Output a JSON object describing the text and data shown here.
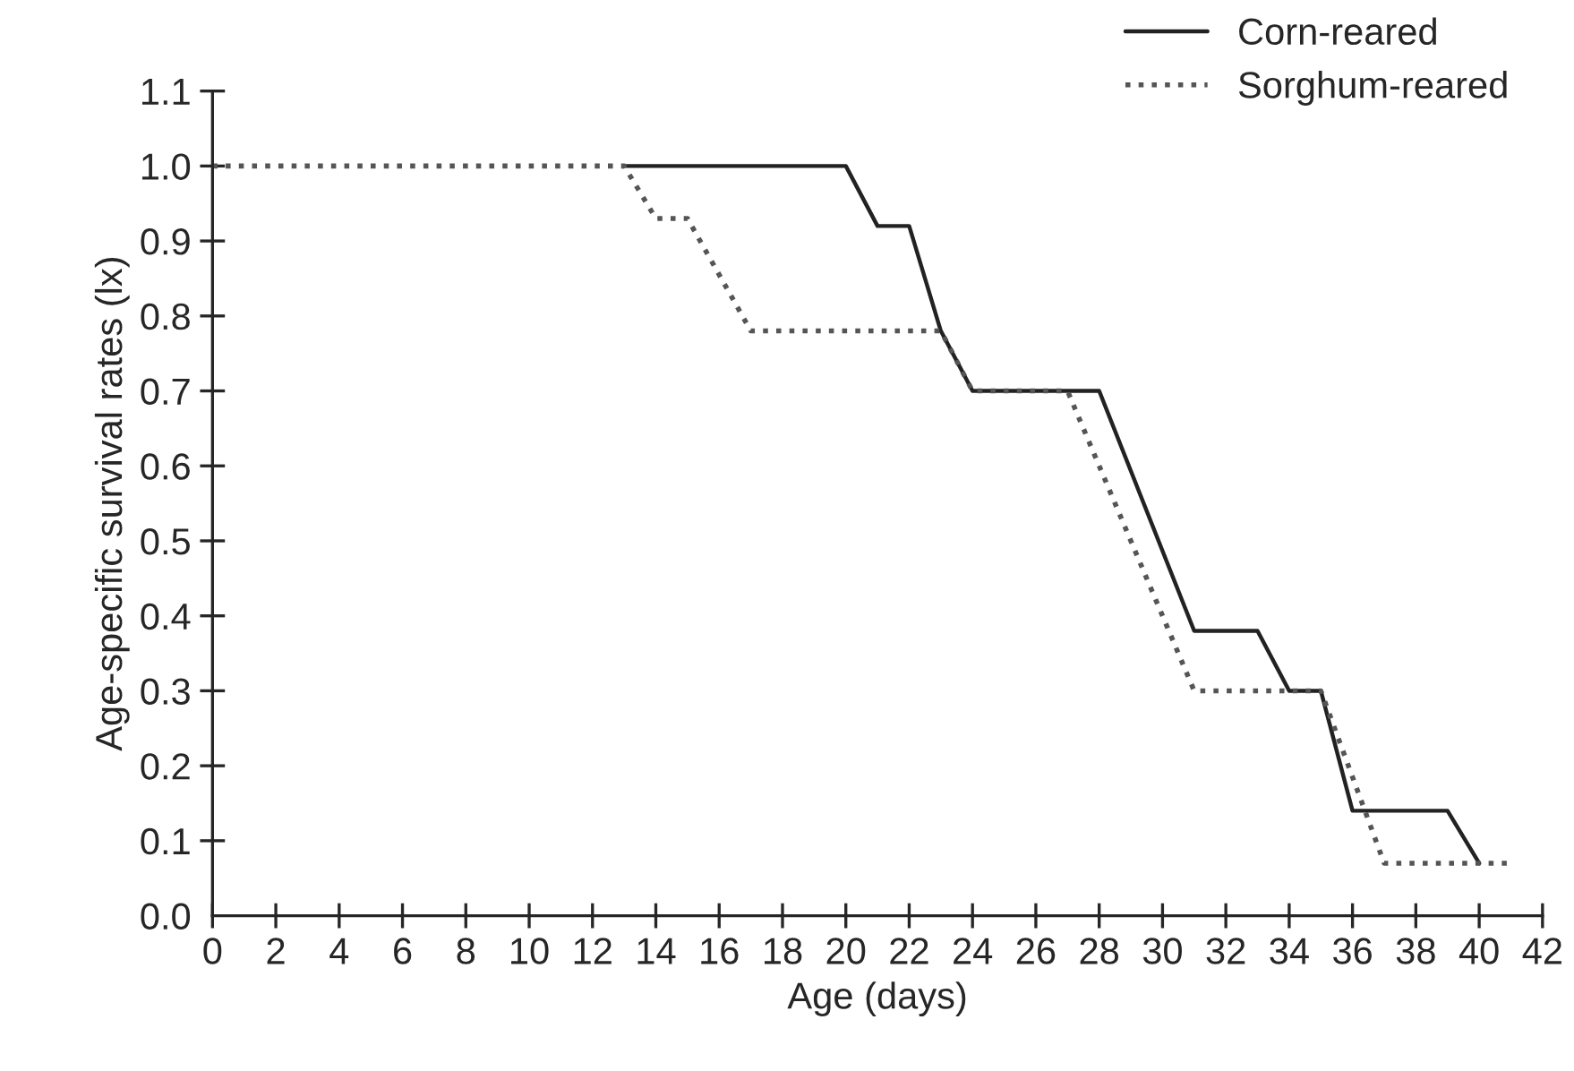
{
  "chart_data": {
    "type": "line",
    "xlabel": "Age (days)",
    "ylabel": "Age-specific survival rates (lx)",
    "series": [
      {
        "name": "Corn-reared",
        "color": "#222222",
        "line_style": "solid",
        "x": [
          13,
          20,
          21,
          22,
          23,
          24,
          28,
          31,
          33,
          34,
          35,
          36,
          39,
          40
        ],
        "values": [
          1.0,
          1.0,
          0.92,
          0.92,
          0.78,
          0.7,
          0.7,
          0.38,
          0.38,
          0.3,
          0.3,
          0.14,
          0.14,
          0.07
        ]
      },
      {
        "name": "Sorghum-reared",
        "color": "#555555",
        "line_style": "dotted",
        "x": [
          0,
          13,
          14,
          15,
          17,
          23,
          24,
          27,
          31,
          35,
          37,
          41
        ],
        "values": [
          1.0,
          1.0,
          0.93,
          0.93,
          0.78,
          0.78,
          0.7,
          0.7,
          0.3,
          0.3,
          0.07,
          0.07
        ]
      }
    ],
    "xlim": [
      0,
      42
    ],
    "xticks": [
      0,
      2,
      4,
      6,
      8,
      10,
      12,
      14,
      16,
      18,
      20,
      22,
      24,
      26,
      28,
      30,
      32,
      34,
      36,
      38,
      40,
      42
    ],
    "ylim": [
      0,
      1.1
    ],
    "yticks": [
      {
        "value": 0,
        "label": "0.0"
      },
      0.1,
      0.2,
      0.3,
      0.4,
      0.5,
      0.6,
      0.7,
      0.8,
      0.9,
      {
        "value": 1.0,
        "label": "1.0"
      },
      1.1
    ],
    "grid": false,
    "legend": "top right",
    "marker": "none"
  }
}
